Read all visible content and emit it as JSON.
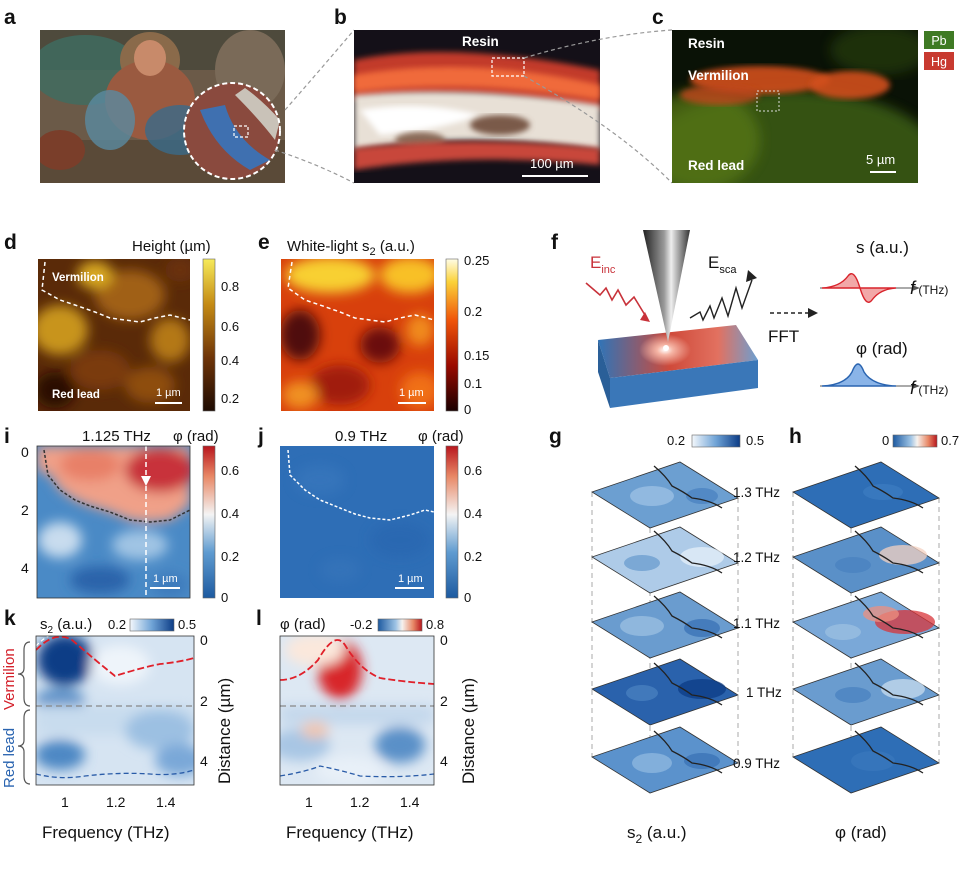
{
  "panels": {
    "a": {
      "label": "a"
    },
    "b": {
      "label": "b",
      "resin": "Resin",
      "scale": "100 µm"
    },
    "c": {
      "label": "c",
      "resin": "Resin",
      "vermilion": "Vermilion",
      "red_lead": "Red lead",
      "scale": "5 µm",
      "legend_pb": "Pb",
      "legend_hg": "Hg"
    },
    "d": {
      "label": "d",
      "title": "Height (µm)",
      "vermilion": "Vermilion",
      "red_lead": "Red lead",
      "scale": "1 µm",
      "cbar_ticks": [
        "0.8",
        "0.6",
        "0.4",
        "0.2"
      ]
    },
    "e": {
      "label": "e",
      "title_main": "White-light  s",
      "title_sub": "2",
      "title_unit": " (a.u.)",
      "scale": "1 µm",
      "cbar_ticks": [
        "0.25",
        "0.2",
        "0.15",
        "0.1",
        "0"
      ]
    },
    "f": {
      "label": "f",
      "e_inc": "E",
      "e_inc_sub": "inc",
      "e_sca": "E",
      "e_sca_sub": "sca",
      "fft": "FFT",
      "s_label": "s (a.u.)",
      "phi_label": "φ (rad)",
      "f_axis": "f",
      "f_unit": " (THz)"
    },
    "i": {
      "label": "i",
      "title_freq": "1.125 THz",
      "title_unit": "φ (rad)",
      "y_ticks": [
        "0",
        "2",
        "4"
      ],
      "scale": "1 µm",
      "cbar_ticks": [
        "0.6",
        "0.4",
        "0.2",
        "0"
      ]
    },
    "j": {
      "label": "j",
      "title_freq": "0.9 THz",
      "title_unit": "φ (rad)",
      "scale": "1 µm",
      "cbar_ticks": [
        "0.6",
        "0.4",
        "0.2",
        "0"
      ]
    },
    "g": {
      "label": "g",
      "cbar_min": "0.2",
      "cbar_max": "0.5",
      "bottom_main": "s",
      "bottom_sub": "2",
      "bottom_unit": " (a.u.)"
    },
    "h": {
      "label": "h",
      "cbar_min": "0",
      "cbar_max": "0.7",
      "bottom": "φ (rad)"
    },
    "stack_freqs": [
      "1.3 THz",
      "1.2 THz",
      "1.1 THz",
      "1 THz",
      "0.9 THz"
    ],
    "k": {
      "label": "k",
      "title_main": "s",
      "title_sub": "2",
      "title_unit": " (a.u.)",
      "cbar_min": "0.2",
      "cbar_max": "0.5",
      "vermilion": "Vermilion",
      "red_lead": "Red lead",
      "xlabel": "Frequency (THz)",
      "ylabel": "Distance (µm)",
      "x_ticks": [
        "1",
        "1.2",
        "1.4"
      ],
      "y_ticks": [
        "0",
        "2",
        "4"
      ]
    },
    "l": {
      "label": "l",
      "title": "φ (rad)",
      "cbar_min": "-0.2",
      "cbar_max": "0.8",
      "xlabel": "Frequency (THz)",
      "ylabel": "Distance (µm)",
      "x_ticks": [
        "1",
        "1.2",
        "1.4"
      ],
      "y_ticks": [
        "0",
        "2",
        "4"
      ]
    }
  }
}
